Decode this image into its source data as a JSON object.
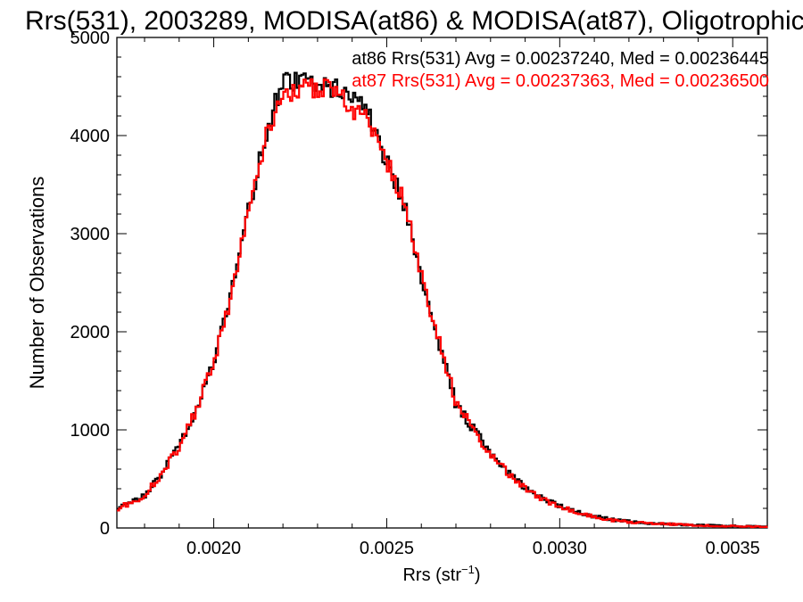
{
  "chart_data": {
    "type": "line",
    "title": "Rrs(531), 2003289, MODISA(at86) & MODISA(at87), Oligotrophic",
    "xlabel": "Rrs (str",
    "xlabel_sup": "−1",
    "xlabel_close": ")",
    "ylabel": "Number of Observations",
    "xlim": [
      0.00172,
      0.0036
    ],
    "ylim": [
      0,
      5000
    ],
    "xticks": [
      0.002,
      0.0025,
      0.003,
      0.0035
    ],
    "xtick_labels": [
      "0.0020",
      "0.0025",
      "0.0030",
      "0.0035"
    ],
    "yticks": [
      0,
      1000,
      2000,
      3000,
      4000,
      5000
    ],
    "ytick_labels": [
      "0",
      "1000",
      "2000",
      "3000",
      "4000",
      "5000"
    ],
    "grid": false,
    "legend_position": "top-right",
    "annotations": [
      {
        "text": "at86 Rrs(531) Avg = 0.00237240, Med = 0.00236445",
        "color": "#000000"
      },
      {
        "text": "at87 Rrs(531) Avg = 0.00237363, Med = 0.00236500",
        "color": "#ff0000"
      }
    ],
    "series": [
      {
        "color": "#000000",
        "x": [
          0.00172,
          0.0018,
          0.00185,
          0.0019,
          0.00195,
          0.002,
          0.00205,
          0.0021,
          0.00215,
          0.0022,
          0.00225,
          0.0023,
          0.00235,
          0.0024,
          0.00245,
          0.0025,
          0.00255,
          0.0026,
          0.00265,
          0.0027,
          0.00275,
          0.0028,
          0.00285,
          0.0029,
          0.00295,
          0.003,
          0.00305,
          0.0031,
          0.00315,
          0.0032,
          0.00325,
          0.0033,
          0.00335,
          0.0034,
          0.00345,
          0.0035,
          0.00355,
          0.0036
        ],
        "y": [
          200,
          330,
          560,
          830,
          1230,
          1710,
          2370,
          3230,
          4010,
          4560,
          4560,
          4560,
          4480,
          4400,
          4180,
          3730,
          3310,
          2580,
          1910,
          1260,
          1010,
          760,
          570,
          410,
          300,
          220,
          160,
          120,
          85,
          65,
          50,
          42,
          35,
          30,
          24,
          20,
          16,
          12
        ]
      },
      {
        "color": "#ff0000",
        "x": [
          0.00172,
          0.0018,
          0.00185,
          0.0019,
          0.00195,
          0.002,
          0.00205,
          0.0021,
          0.00215,
          0.0022,
          0.00225,
          0.0023,
          0.00235,
          0.0024,
          0.00245,
          0.0025,
          0.00255,
          0.0026,
          0.00265,
          0.0027,
          0.00275,
          0.0028,
          0.00285,
          0.0029,
          0.00295,
          0.003,
          0.00305,
          0.0031,
          0.00315,
          0.0032,
          0.00325,
          0.0033,
          0.00335,
          0.0034,
          0.00345,
          0.0035,
          0.00355,
          0.0036
        ],
        "y": [
          190,
          330,
          560,
          820,
          1210,
          1700,
          2360,
          3220,
          4000,
          4430,
          4480,
          4480,
          4500,
          4280,
          4140,
          3740,
          3320,
          2590,
          1920,
          1280,
          1010,
          750,
          560,
          400,
          290,
          220,
          155,
          115,
          82,
          62,
          48,
          40,
          33,
          28,
          23,
          19,
          15,
          12
        ]
      }
    ]
  }
}
